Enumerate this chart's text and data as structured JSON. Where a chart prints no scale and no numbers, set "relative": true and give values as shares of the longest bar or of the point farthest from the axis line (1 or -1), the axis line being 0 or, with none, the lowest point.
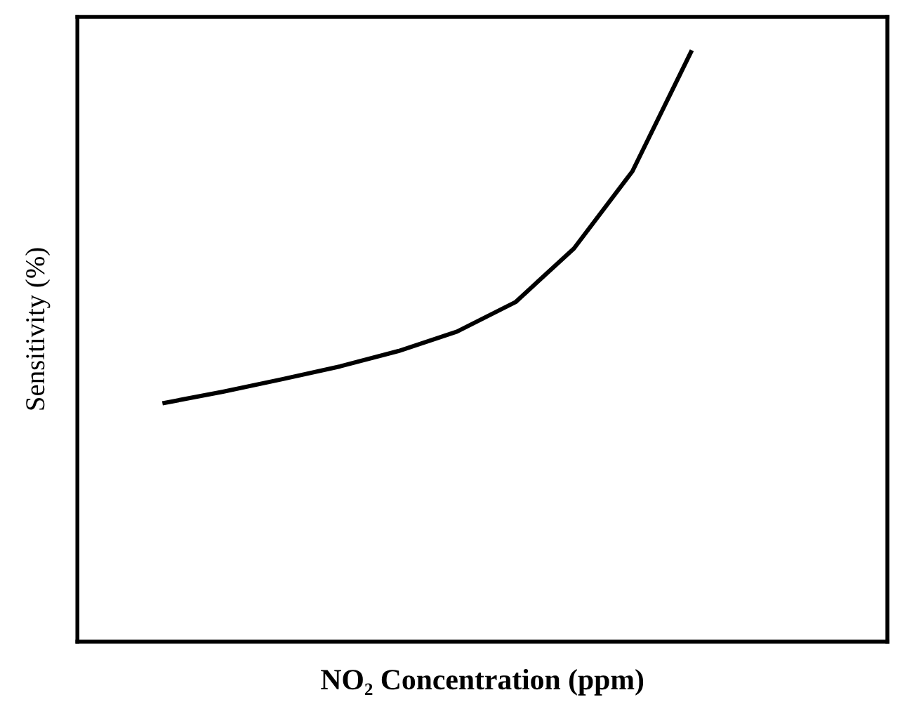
{
  "chart_data": {
    "type": "line",
    "relative": true,
    "xlabel": "NO₂ Concentration (ppm)",
    "ylabel": "Sensitivity (%)",
    "categories": [
      null,
      null,
      null,
      null,
      null,
      null,
      null,
      null,
      null,
      null
    ],
    "series": [
      {
        "color": "#000000",
        "values": [
          0.405,
          0.424,
          0.445,
          0.467,
          0.493,
          0.526,
          0.576,
          0.667,
          0.798,
          1
        ]
      }
    ],
    "marker": "none",
    "line_style": "solid"
  }
}
